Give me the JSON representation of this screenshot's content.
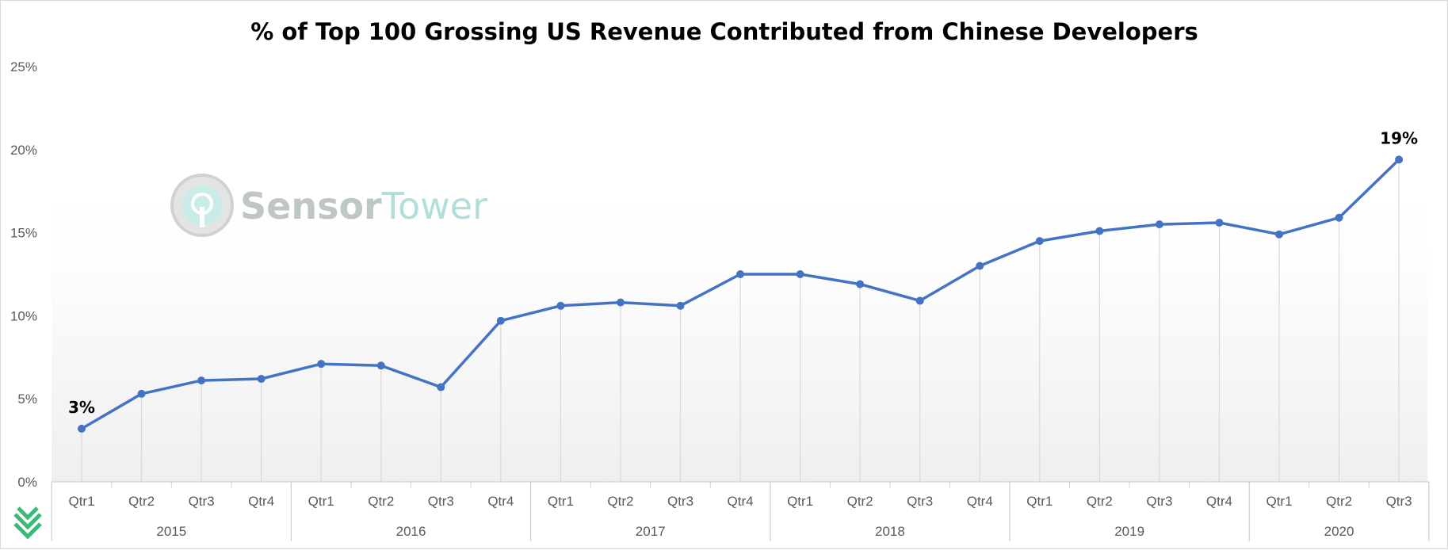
{
  "chart_data": {
    "type": "line",
    "title": "% of Top 100 Grossing US Revenue Contributed from Chinese Developers",
    "xlabel": "",
    "ylabel": "",
    "ylim": [
      0,
      25
    ],
    "yticks": [
      "0%",
      "5%",
      "10%",
      "15%",
      "20%",
      "25%"
    ],
    "years": [
      {
        "label": "2015",
        "quarters": [
          "Qtr1",
          "Qtr2",
          "Qtr3",
          "Qtr4"
        ]
      },
      {
        "label": "2016",
        "quarters": [
          "Qtr1",
          "Qtr2",
          "Qtr3",
          "Qtr4"
        ]
      },
      {
        "label": "2017",
        "quarters": [
          "Qtr1",
          "Qtr2",
          "Qtr3",
          "Qtr4"
        ]
      },
      {
        "label": "2018",
        "quarters": [
          "Qtr1",
          "Qtr2",
          "Qtr3",
          "Qtr4"
        ]
      },
      {
        "label": "2019",
        "quarters": [
          "Qtr1",
          "Qtr2",
          "Qtr3",
          "Qtr4"
        ]
      },
      {
        "label": "2020",
        "quarters": [
          "Qtr1",
          "Qtr2",
          "Qtr3"
        ]
      }
    ],
    "values": [
      3.2,
      5.3,
      6.1,
      6.2,
      7.1,
      7.0,
      5.7,
      9.7,
      10.6,
      10.8,
      10.6,
      12.5,
      12.5,
      11.9,
      10.9,
      13.0,
      14.5,
      15.1,
      15.5,
      15.6,
      14.9,
      15.9,
      19.4
    ],
    "data_labels": [
      {
        "index": 0,
        "text": "3%"
      },
      {
        "index": 22,
        "text": "19%"
      }
    ],
    "line_color": "#4472C4",
    "grid": "vertical drop lines per point"
  },
  "watermark": {
    "text_part1": "Sensor",
    "text_part2": "Tower",
    "color_part1": "#b8c2c0",
    "color_part2": "#a8dcd5",
    "icon": "sensor-tower-logo-icon"
  },
  "corner_logo": {
    "icon": "sensor-tower-chevron-icon",
    "color": "#3cb878"
  }
}
